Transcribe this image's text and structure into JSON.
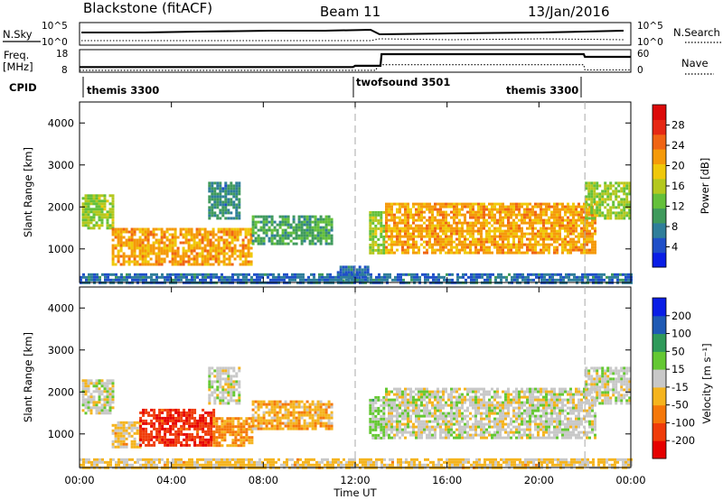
{
  "header": {
    "title": "Blackstone (fitACF)",
    "beam": "Beam 11",
    "date": "13/Jan/2016"
  },
  "top_panels": {
    "nsky_label": "N.Sky",
    "nsearch_label": "N.Search",
    "freq_label": "Freq.",
    "freq_unit": "[MHz]",
    "nave_label": "Nave",
    "cpid_label": "CPID",
    "nsky_ticks": [
      "10^5",
      "10^0"
    ],
    "nsearch_ticks": [
      "10^5",
      "10^0"
    ],
    "freq_ticks": [
      "18",
      "8"
    ],
    "nave_ticks": [
      "60",
      "0"
    ],
    "cpid_modes": [
      {
        "name": "themis 3300",
        "start_hour": 0,
        "end_hour": 12.0
      },
      {
        "name": "twofsound 3501",
        "start_hour": 12.0,
        "end_hour": 22.0
      },
      {
        "name": "themis 3300",
        "start_hour": 22.0,
        "end_hour": 24.0
      }
    ],
    "freq_trace": [
      [
        0,
        9.2
      ],
      [
        11.9,
        9.2
      ],
      [
        12.0,
        10.0
      ],
      [
        13.1,
        10.0
      ],
      [
        13.15,
        17.2
      ],
      [
        21.95,
        17.2
      ],
      [
        22.0,
        15.5
      ],
      [
        24,
        15.5
      ]
    ],
    "nave_trace": [
      [
        0,
        5
      ],
      [
        12.9,
        5
      ],
      [
        13.0,
        20
      ],
      [
        21.95,
        20
      ],
      [
        22.0,
        6
      ],
      [
        24,
        6
      ]
    ]
  },
  "chart_data": [
    {
      "type": "heatmap",
      "name": "power",
      "xlabel": "",
      "ylabel": "Slant Range [km]",
      "xlim": [
        0,
        24
      ],
      "ylim": [
        200,
        4500
      ],
      "yticks": [
        "1000",
        "2000",
        "3000",
        "4000"
      ],
      "colorbar": {
        "label": "Power [dB]",
        "ticks": [
          "4",
          "8",
          "12",
          "16",
          "20",
          "24",
          "28"
        ],
        "range": [
          0,
          30
        ],
        "colors": [
          "#0a1ee6",
          "#1f4fc8",
          "#2f7e9a",
          "#3f9a5c",
          "#64c03a",
          "#b4c81e",
          "#f0c80a",
          "#f59a0a",
          "#f06414",
          "#e62814",
          "#dc0a0a"
        ]
      },
      "regions": [
        {
          "t": [
            0.1,
            1.4
          ],
          "r": [
            1500,
            2300
          ],
          "v": 14
        },
        {
          "t": [
            1.4,
            7.5
          ],
          "r": [
            600,
            1500
          ],
          "v": 20
        },
        {
          "t": [
            5.6,
            7.0
          ],
          "r": [
            1700,
            2600
          ],
          "v": 8
        },
        {
          "t": [
            7.5,
            11.0
          ],
          "r": [
            1100,
            1800
          ],
          "v": 10
        },
        {
          "t": [
            11.2,
            12.5
          ],
          "r": [
            250,
            600
          ],
          "v": 6
        },
        {
          "t": [
            12.6,
            13.2
          ],
          "r": [
            900,
            1900
          ],
          "v": 14
        },
        {
          "t": [
            13.3,
            22.5
          ],
          "r": [
            900,
            2100
          ],
          "v": 20
        },
        {
          "t": [
            22.0,
            24.0
          ],
          "r": [
            1700,
            2600
          ],
          "v": 14
        },
        {
          "t": [
            0.0,
            24.0
          ],
          "r": [
            200,
            420
          ],
          "v": 6
        }
      ],
      "cpid_boundaries": [
        12.0,
        22.0
      ]
    },
    {
      "type": "heatmap",
      "name": "velocity",
      "xlabel": "Time UT",
      "ylabel": "Slant Range [km]",
      "xlim": [
        0,
        24
      ],
      "ylim": [
        200,
        4500
      ],
      "xticks": [
        "00:00",
        "04:00",
        "08:00",
        "12:00",
        "16:00",
        "20:00",
        "00:00"
      ],
      "yticks": [
        "1000",
        "2000",
        "3000",
        "4000"
      ],
      "colorbar": {
        "label": "Velocity [m s⁻¹]",
        "ticks": [
          "-200",
          "-100",
          "-50",
          "-15",
          "15",
          "50",
          "100",
          "200"
        ],
        "range": [
          -250,
          250
        ],
        "colors": [
          "#e60000",
          "#f03c0a",
          "#f5780a",
          "#f5b41e",
          "#c8c8c8",
          "#64c832",
          "#2f9a5a",
          "#1f5ab4",
          "#0a1ee6"
        ]
      },
      "regions": [
        {
          "t": [
            0.1,
            1.4
          ],
          "r": [
            1500,
            2300
          ],
          "v": 0
        },
        {
          "t": [
            1.4,
            2.6
          ],
          "r": [
            700,
            1300
          ],
          "v": -40
        },
        {
          "t": [
            2.6,
            5.8
          ],
          "r": [
            700,
            1600
          ],
          "v": -180
        },
        {
          "t": [
            5.8,
            7.5
          ],
          "r": [
            700,
            1400
          ],
          "v": -90
        },
        {
          "t": [
            5.6,
            7.0
          ],
          "r": [
            1700,
            2600
          ],
          "v": 0
        },
        {
          "t": [
            7.5,
            11.0
          ],
          "r": [
            1100,
            1800
          ],
          "v": -60
        },
        {
          "t": [
            12.6,
            13.2
          ],
          "r": [
            900,
            1900
          ],
          "v": 40
        },
        {
          "t": [
            13.3,
            22.5
          ],
          "r": [
            900,
            2100
          ],
          "v": 0
        },
        {
          "t": [
            22.0,
            24.0
          ],
          "r": [
            1700,
            2600
          ],
          "v": 0
        },
        {
          "t": [
            0.0,
            24.0
          ],
          "r": [
            200,
            420
          ],
          "v": -40
        }
      ],
      "cpid_boundaries": [
        12.0,
        22.0
      ]
    }
  ]
}
